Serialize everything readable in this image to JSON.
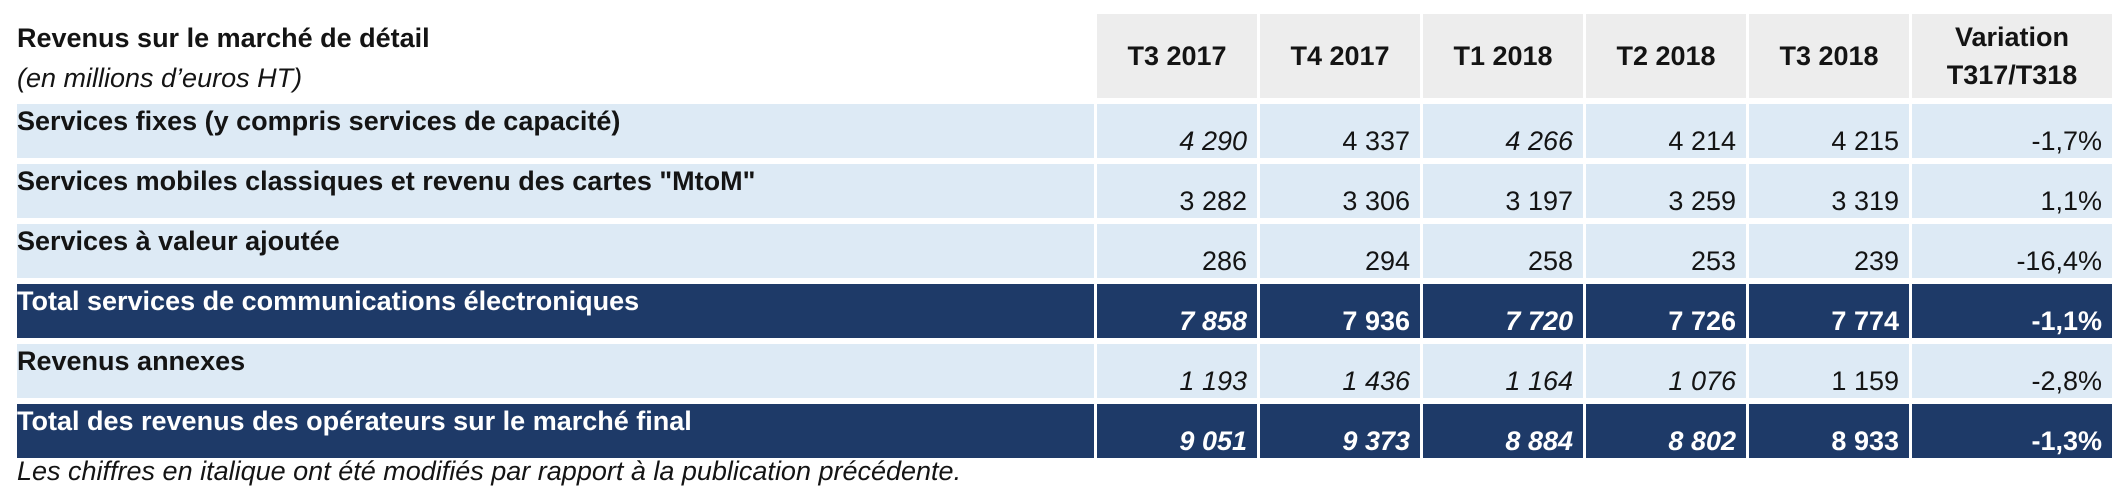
{
  "table": {
    "title": "Revenus sur le marché de détail",
    "subtitle": "(en millions d’euros HT)",
    "columns": [
      "T3 2017",
      "T4 2017",
      "T1 2018",
      "T2 2018",
      "T3 2018"
    ],
    "variation_header": [
      "Variation",
      "T317/T318"
    ],
    "rows": [
      {
        "label": "Services fixes (y compris services de capacité)",
        "style": "light",
        "values": [
          "4 290",
          "4 337",
          "4 266",
          "4 214",
          "4 215"
        ],
        "italic": [
          true,
          false,
          true,
          false,
          false
        ],
        "variation": "-1,7%"
      },
      {
        "label": "Services mobiles classiques et revenu des cartes \"MtoM\"",
        "style": "light",
        "values": [
          "3 282",
          "3 306",
          "3 197",
          "3 259",
          "3 319"
        ],
        "italic": [
          false,
          false,
          false,
          false,
          false
        ],
        "variation": "1,1%"
      },
      {
        "label": "Services à valeur ajoutée",
        "style": "light",
        "values": [
          "286",
          "294",
          "258",
          "253",
          "239"
        ],
        "italic": [
          false,
          false,
          false,
          false,
          false
        ],
        "variation": "-16,4%"
      },
      {
        "label": "Total services de communications électroniques",
        "style": "dark",
        "values": [
          "7 858",
          "7 936",
          "7 720",
          "7 726",
          "7 774"
        ],
        "italic": [
          true,
          false,
          true,
          false,
          false
        ],
        "variation": "-1,1%"
      },
      {
        "label": "Revenus annexes",
        "style": "light",
        "values": [
          "1 193",
          "1 436",
          "1 164",
          "1 076",
          "1 159"
        ],
        "italic": [
          true,
          true,
          true,
          true,
          false
        ],
        "variation": "-2,8%"
      },
      {
        "label": "Total des revenus des opérateurs sur le marché final",
        "style": "dark",
        "values": [
          "9 051",
          "9 373",
          "8 884",
          "8 802",
          "8 933"
        ],
        "italic": [
          true,
          true,
          true,
          true,
          false
        ],
        "variation": "-1,3%"
      }
    ],
    "footnote": "Les chiffres en italique ont été modifiés par rapport à la publication précédente."
  },
  "colors": {
    "light_row": "#ddeaf5",
    "dark_row": "#1e3a68",
    "header_cell": "#ededed"
  }
}
